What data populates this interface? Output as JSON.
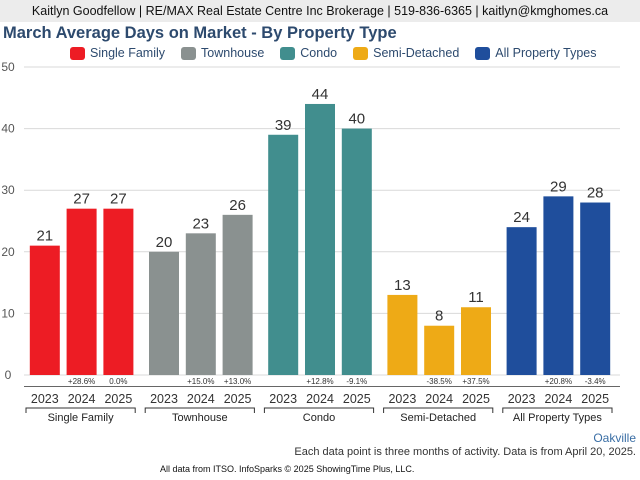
{
  "header": {
    "contact": "Kaitlyn Goodfellow | RE/MAX Real Estate Centre Inc Brokerage | 519-836-6365 | kaitlyn@kmghomes.ca"
  },
  "footer": {
    "city": "Oakville",
    "note": "Each data point is three months of activity. Data is from April 20, 2025.",
    "source": "All data from ITSO. InfoSparks © 2025 ShowingTime Plus, LLC."
  },
  "chart_data": {
    "type": "bar",
    "title": "March Average Days on Market - By Property Type",
    "xlabel": "",
    "ylabel": "",
    "ylim": [
      0,
      50
    ],
    "yticks": [
      0,
      10,
      20,
      30,
      40,
      50
    ],
    "grid": true,
    "legend_position": "top",
    "years": [
      "2023",
      "2024",
      "2025"
    ],
    "series": [
      {
        "name": "Single Family",
        "color": "#ed1c24",
        "values": [
          21,
          27,
          27
        ],
        "changes": [
          "",
          "+28.6%",
          "0.0%"
        ]
      },
      {
        "name": "Townhouse",
        "color": "#8a9190",
        "values": [
          20,
          23,
          26
        ],
        "changes": [
          "",
          "+15.0%",
          "+13.0%"
        ]
      },
      {
        "name": "Condo",
        "color": "#418e8e",
        "values": [
          39,
          44,
          40
        ],
        "changes": [
          "",
          "+12.8%",
          "-9.1%"
        ]
      },
      {
        "name": "Semi-Detached",
        "color": "#eeaa16",
        "values": [
          13,
          8,
          11
        ],
        "changes": [
          "",
          "-38.5%",
          "+37.5%"
        ]
      },
      {
        "name": "All Property Types",
        "color": "#1f4e9c",
        "values": [
          24,
          29,
          28
        ],
        "changes": [
          "",
          "+20.8%",
          "-3.4%"
        ]
      }
    ]
  }
}
